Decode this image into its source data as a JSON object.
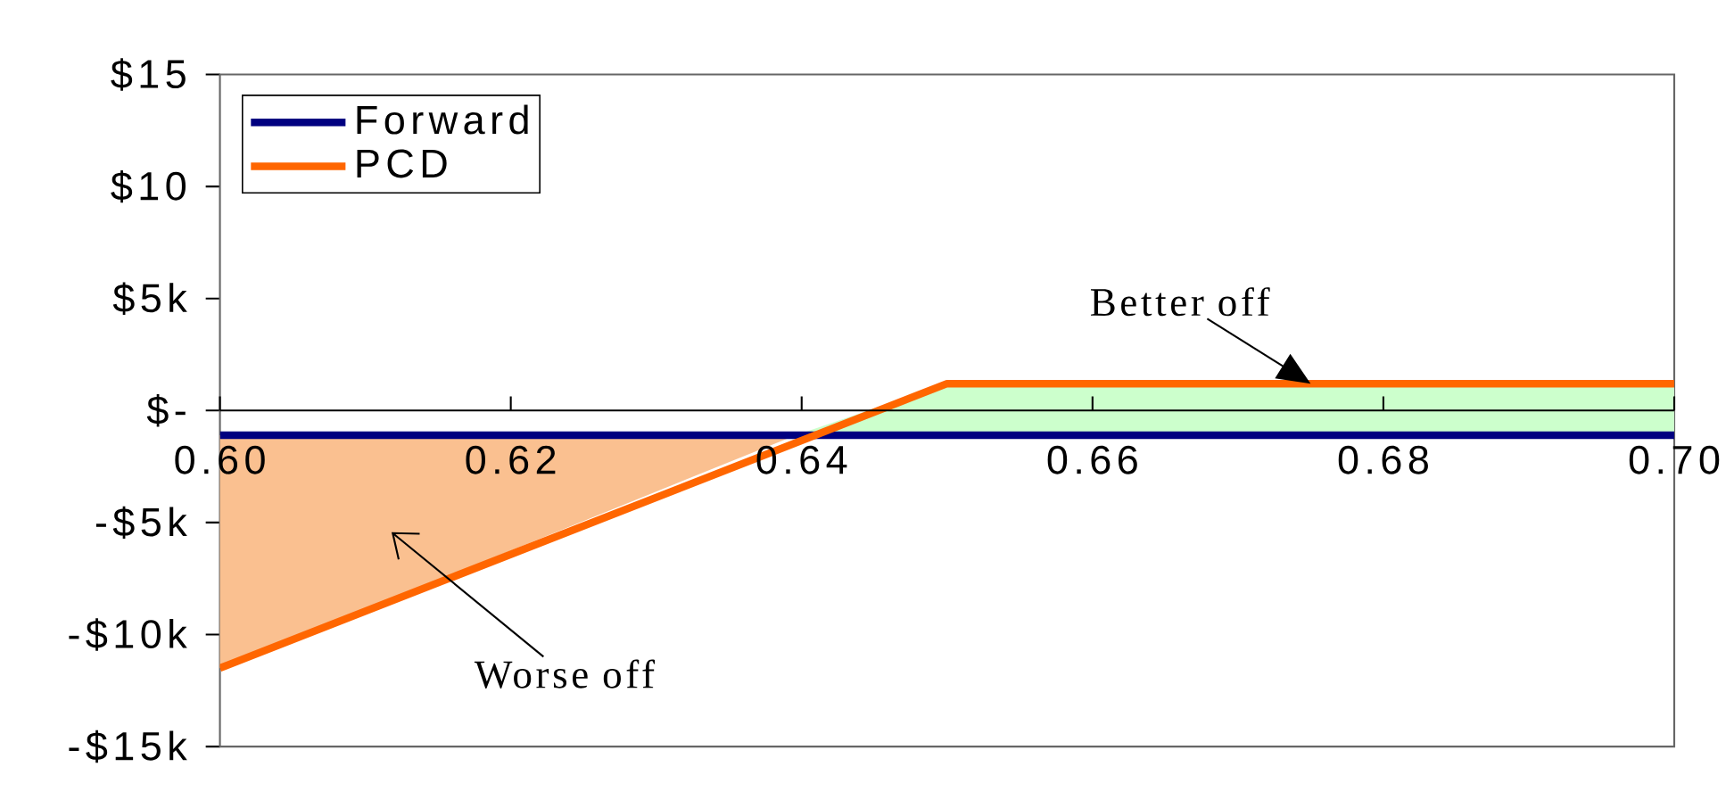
{
  "chart_data": {
    "type": "line",
    "series": [
      {
        "type": "area",
        "color": "#fac090",
        "x": [
          0.6,
          0.6,
          0.6396
        ],
        "values": [
          -1.1,
          -11.5,
          -1.1
        ]
      },
      {
        "type": "area",
        "color": "#ccffcc",
        "x": [
          0.6396,
          0.65,
          0.7,
          0.7
        ],
        "values": [
          -1.1,
          1.2,
          1.2,
          -1.1
        ]
      },
      {
        "name": "Forward",
        "color": "#000080",
        "x": [
          0.6,
          0.7
        ],
        "values": [
          -1.1,
          -1.1
        ]
      },
      {
        "name": "PCD",
        "color": "#ff6600",
        "x": [
          0.6,
          0.65,
          0.7
        ],
        "values": [
          -11.5,
          1.2,
          1.2
        ]
      }
    ],
    "xlim": [
      0.6,
      0.7
    ],
    "xticks": [
      {
        "value": 0.6,
        "label": "0.60"
      },
      {
        "value": 0.62,
        "label": "0.62"
      },
      {
        "value": 0.64,
        "label": "0.64"
      },
      {
        "value": 0.66,
        "label": "0.66"
      },
      {
        "value": 0.68,
        "label": "0.68"
      },
      {
        "value": 0.7,
        "label": "0.70"
      }
    ],
    "ylim": [
      -15,
      15
    ],
    "yticks": [
      {
        "value": -15,
        "label": "-$15k"
      },
      {
        "value": -10,
        "label": "-$10k"
      },
      {
        "value": -5,
        "label": "-$5k"
      },
      {
        "value": 0,
        "label": "$-"
      },
      {
        "value": 5,
        "label": "$5k"
      },
      {
        "value": 10,
        "label": "$10"
      },
      {
        "value": 15,
        "label": "$15"
      }
    ],
    "legend": "top left",
    "annotations": [
      {
        "text": "Better off",
        "x": 0.675,
        "y": 1.2
      },
      "Worse off"
    ]
  }
}
